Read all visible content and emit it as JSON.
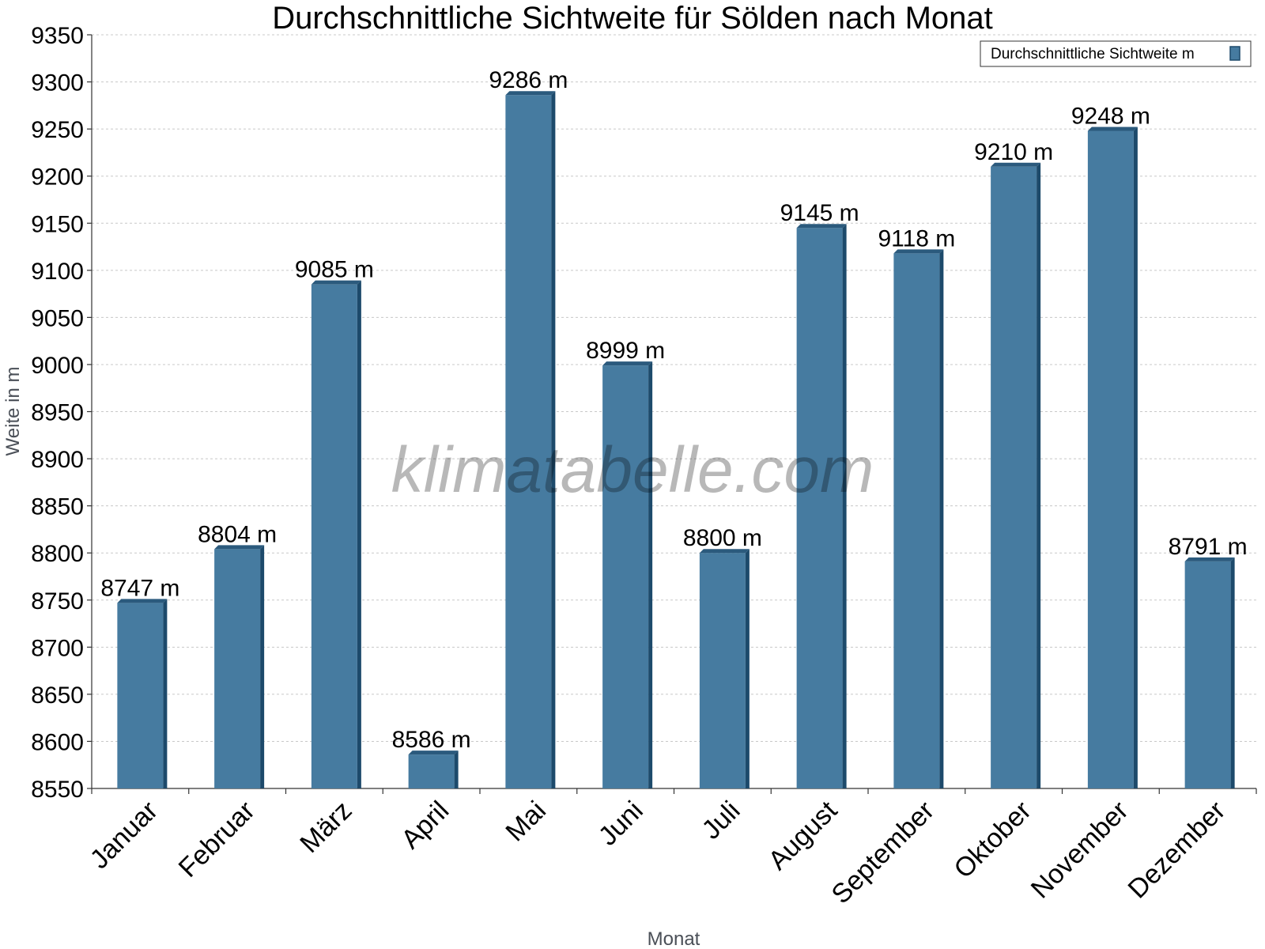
{
  "chart_data": {
    "type": "bar",
    "title": "Durchschnittliche Sichtweite für Sölden nach Monat",
    "xlabel": "Monat",
    "ylabel": "Weite in m",
    "categories": [
      "Januar",
      "Februar",
      "März",
      "April",
      "Mai",
      "Juni",
      "Juli",
      "August",
      "September",
      "Oktober",
      "November",
      "Dezember"
    ],
    "series": [
      {
        "name": "Durchschnittliche Sichtweite m",
        "values": [
          8747,
          8804,
          9085,
          8586,
          9286,
          8999,
          8800,
          9145,
          9118,
          9210,
          9248,
          8791
        ],
        "labels": [
          "8747 m",
          "8804 m",
          "9085 m",
          "8586 m",
          "9286 m",
          "8999 m",
          "8800 m",
          "9145 m",
          "9118 m",
          "9210 m",
          "9248 m",
          "8791 m"
        ]
      }
    ],
    "ylim": [
      8550,
      9350
    ],
    "yticks": [
      8550,
      8600,
      8650,
      8700,
      8750,
      8800,
      8850,
      8900,
      8950,
      9000,
      9050,
      9100,
      9150,
      9200,
      9250,
      9300,
      9350
    ],
    "grid": true,
    "legend_position": "top-right",
    "colors": {
      "bar": "#467ba0",
      "bar_side": "#1d4a6b",
      "bar_top": "#2b5a7d"
    },
    "watermark": "klimatabelle.com"
  }
}
